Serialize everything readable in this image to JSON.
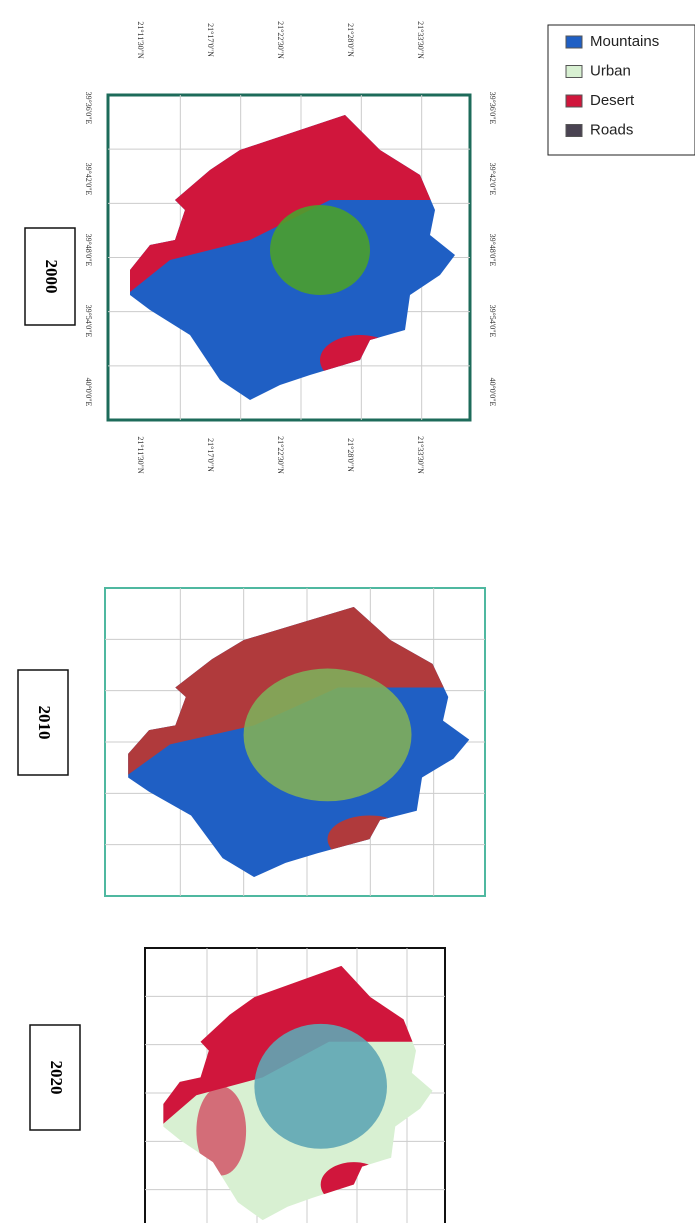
{
  "legend": {
    "items": [
      {
        "label": "Mountains",
        "color": "#1f5fc4"
      },
      {
        "label": "Urban",
        "color": "#d8f0d2"
      },
      {
        "label": "Desert",
        "color": "#d0163c"
      },
      {
        "label": "Roads",
        "color": "#4a4352"
      }
    ]
  },
  "maps": [
    {
      "year": "2000",
      "lat_labels": [
        "21°11'30\"N",
        "21°17'0\"N",
        "21°22'30\"N",
        "21°28'0\"N",
        "21°33'30\"N"
      ],
      "lon_labels": [
        "39°36'0\"E",
        "39°42'0\"E",
        "39°48'0\"E",
        "39°54'0\"E",
        "40°0'0\"E"
      ]
    },
    {
      "year": "2010"
    },
    {
      "year": "2020"
    }
  ]
}
